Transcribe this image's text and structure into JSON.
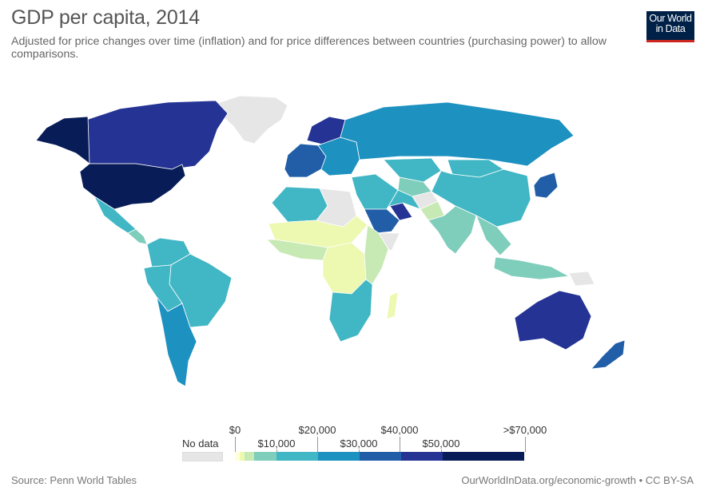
{
  "header": {
    "title": "GDP per capita, 2014",
    "subtitle": "Adjusted for price changes over time (inflation) and for price differences between countries (purchasing power) to allow comparisons."
  },
  "logo": {
    "line1": "Our World",
    "line2": "in Data"
  },
  "legend": {
    "no_data_label": "No data",
    "no_data_color": "#e6e6e6",
    "bins": [
      {
        "from": 0,
        "to": 1000,
        "color": "#ffffd9"
      },
      {
        "from": 1000,
        "to": 2000,
        "color": "#edf8b1"
      },
      {
        "from": 2000,
        "to": 5000,
        "color": "#c7e9b4"
      },
      {
        "from": 5000,
        "to": 10000,
        "color": "#7fcdbb"
      },
      {
        "from": 10000,
        "to": 20000,
        "color": "#41b6c4"
      },
      {
        "from": 20000,
        "to": 30000,
        "color": "#1d91c0"
      },
      {
        "from": 30000,
        "to": 40000,
        "color": "#225ea8"
      },
      {
        "from": 40000,
        "to": 50000,
        "color": "#253494"
      },
      {
        "from": 50000,
        "to": 70000,
        "color": "#081d58"
      }
    ],
    "labels_top": [
      "$0",
      "$20,000",
      "$40,000",
      ">$70,000"
    ],
    "labels_bottom": [
      "$10,000",
      "$30,000",
      "$50,000"
    ]
  },
  "footer": {
    "source": "Source: Penn World Tables",
    "url": "OurWorldInData.org/economic-growth • CC BY-SA"
  },
  "map_data": {
    "year": 2014,
    "regions": [
      {
        "name": "Greenland",
        "color": "#e6e6e6"
      },
      {
        "name": "Canada",
        "color": "#253494"
      },
      {
        "name": "Alaska",
        "color": "#081d58"
      },
      {
        "name": "United States",
        "color": "#081d58"
      },
      {
        "name": "Mexico",
        "color": "#41b6c4"
      },
      {
        "name": "Central America",
        "color": "#7fcdbb"
      },
      {
        "name": "Colombia-Venezuela",
        "color": "#41b6c4"
      },
      {
        "name": "Brazil",
        "color": "#41b6c4"
      },
      {
        "name": "Peru-Bolivia",
        "color": "#41b6c4"
      },
      {
        "name": "Argentina-Chile",
        "color": "#1d91c0"
      },
      {
        "name": "Western Europe",
        "color": "#225ea8"
      },
      {
        "name": "Scandinavia",
        "color": "#253494"
      },
      {
        "name": "Eastern Europe",
        "color": "#1d91c0"
      },
      {
        "name": "Russia",
        "color": "#1d91c0"
      },
      {
        "name": "Kazakhstan",
        "color": "#41b6c4"
      },
      {
        "name": "Central Asia",
        "color": "#7fcdbb"
      },
      {
        "name": "Mongolia",
        "color": "#41b6c4"
      },
      {
        "name": "China",
        "color": "#41b6c4"
      },
      {
        "name": "Korea-Japan",
        "color": "#225ea8"
      },
      {
        "name": "Middle East",
        "color": "#41b6c4"
      },
      {
        "name": "Saudi Arabia",
        "color": "#225ea8"
      },
      {
        "name": "Gulf States",
        "color": "#253494"
      },
      {
        "name": "Iran",
        "color": "#41b6c4"
      },
      {
        "name": "Afghanistan",
        "color": "#e6e6e6"
      },
      {
        "name": "Pakistan",
        "color": "#c7e9b4"
      },
      {
        "name": "India",
        "color": "#7fcdbb"
      },
      {
        "name": "Southeast Asia",
        "color": "#7fcdbb"
      },
      {
        "name": "Indonesia",
        "color": "#7fcdbb"
      },
      {
        "name": "Papua New Guinea",
        "color": "#e6e6e6"
      },
      {
        "name": "North Africa",
        "color": "#41b6c4"
      },
      {
        "name": "Libya",
        "color": "#e6e6e6"
      },
      {
        "name": "Sahel",
        "color": "#edf8b1"
      },
      {
        "name": "West Africa",
        "color": "#c7e9b4"
      },
      {
        "name": "Central Africa",
        "color": "#edf8b1"
      },
      {
        "name": "East Africa",
        "color": "#c7e9b4"
      },
      {
        "name": "Somalia",
        "color": "#e6e6e6"
      },
      {
        "name": "Southern Africa",
        "color": "#41b6c4"
      },
      {
        "name": "Madagascar",
        "color": "#edf8b1"
      },
      {
        "name": "Australia",
        "color": "#253494"
      },
      {
        "name": "New Zealand",
        "color": "#225ea8"
      }
    ]
  }
}
